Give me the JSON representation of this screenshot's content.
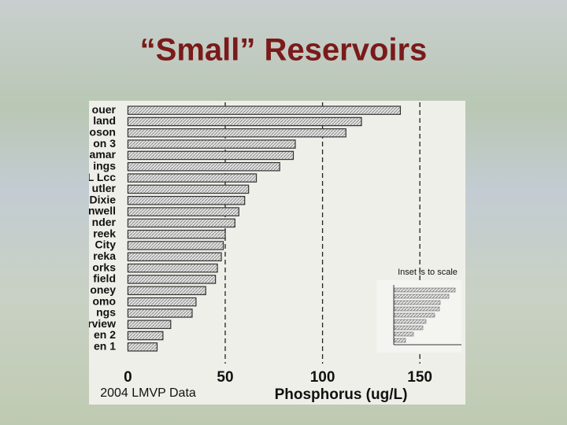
{
  "chart_data": {
    "type": "bar",
    "orientation": "horizontal",
    "title": "“Small” Reservoirs",
    "categories": [
      "ouer",
      "land",
      "oson",
      "on 3",
      "amar",
      "ings",
      "L Lcc",
      "utler",
      "Dixie",
      "nwell",
      "nder",
      "reek",
      "City",
      "reka",
      "orks",
      "field",
      "oney",
      "omo",
      "ngs",
      "rview",
      "en 2",
      "en 1"
    ],
    "values": [
      140,
      120,
      112,
      86,
      85,
      78,
      66,
      62,
      60,
      57,
      55,
      50,
      49,
      48,
      46,
      45,
      40,
      35,
      33,
      22,
      18,
      15
    ],
    "color": "#c8c8c8",
    "xlim": [
      -3,
      173
    ],
    "xticks": [
      0,
      50,
      100,
      150
    ],
    "grid": true,
    "xlabel": "Phosphorus (ug/L)",
    "annotations": [
      "Inset is to scale",
      "2004 LMVP Data"
    ]
  }
}
